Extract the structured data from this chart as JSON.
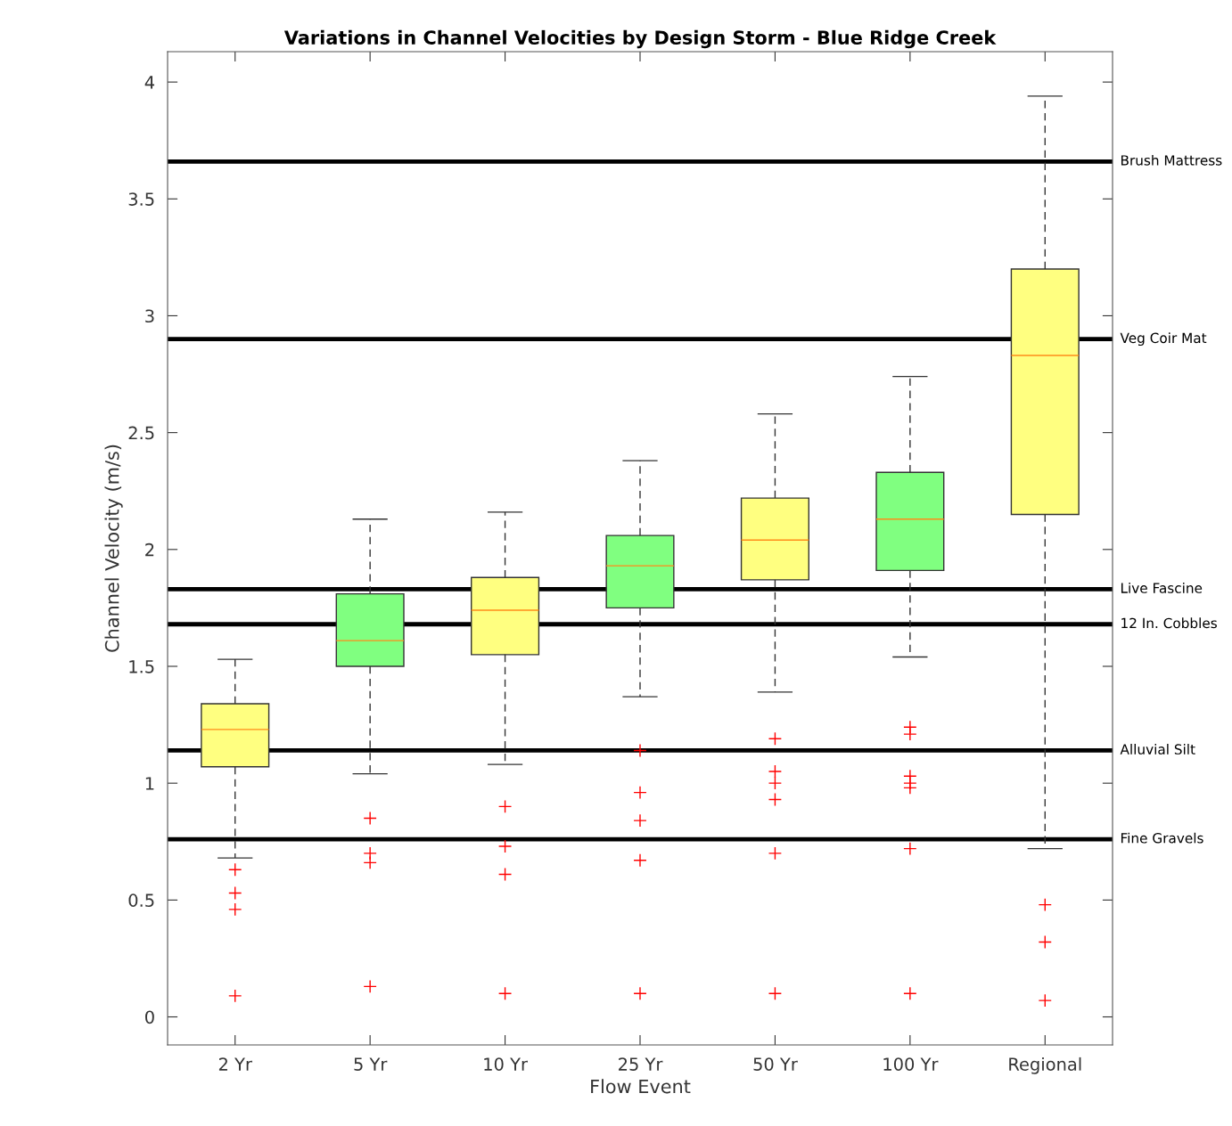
{
  "chart_data": {
    "type": "box",
    "title": "Variations in Channel Velocities by Design Storm - Blue Ridge Creek",
    "xlabel": "Flow Event",
    "ylabel": "Channel Velocity (m/s)",
    "categories": [
      "2 Yr",
      "5 Yr",
      "10 Yr",
      "25 Yr",
      "50 Yr",
      "100 Yr",
      "Regional"
    ],
    "colors": [
      "#ffff80",
      "#80ff80",
      "#ffff80",
      "#80ff80",
      "#ffff80",
      "#80ff80",
      "#ffff80"
    ],
    "boxes": [
      {
        "low": 0.68,
        "q1": 1.07,
        "median": 1.23,
        "q3": 1.34,
        "high": 1.53,
        "outliers": [
          0.63,
          0.53,
          0.46,
          0.09
        ]
      },
      {
        "low": 1.04,
        "q1": 1.5,
        "median": 1.61,
        "q3": 1.81,
        "high": 2.13,
        "outliers": [
          0.85,
          0.7,
          0.66,
          0.13
        ]
      },
      {
        "low": 1.08,
        "q1": 1.55,
        "median": 1.74,
        "q3": 1.88,
        "high": 2.16,
        "outliers": [
          0.9,
          0.73,
          0.61,
          0.1
        ]
      },
      {
        "low": 1.37,
        "q1": 1.75,
        "median": 1.93,
        "q3": 2.06,
        "high": 2.38,
        "outliers": [
          1.14,
          0.96,
          0.84,
          0.67,
          0.1
        ]
      },
      {
        "low": 1.39,
        "q1": 1.87,
        "median": 2.04,
        "q3": 2.22,
        "high": 2.58,
        "outliers": [
          1.19,
          1.05,
          1.0,
          0.93,
          0.7,
          0.1
        ]
      },
      {
        "low": 1.54,
        "q1": 1.91,
        "median": 2.13,
        "q3": 2.33,
        "high": 2.74,
        "outliers": [
          1.24,
          1.21,
          1.03,
          1.0,
          0.98,
          0.72,
          0.1
        ]
      },
      {
        "low": 0.72,
        "q1": 2.15,
        "median": 2.83,
        "q3": 3.2,
        "high": 3.94,
        "outliers": [
          0.48,
          0.32,
          0.07
        ]
      }
    ],
    "ylim": [
      -0.12,
      4.13
    ],
    "yticks": [
      0,
      0.5,
      1,
      1.5,
      2,
      2.5,
      3,
      3.5,
      4
    ],
    "marker": "cross",
    "grid": false,
    "ref_lines": [
      {
        "axis": "y",
        "value": 3.66,
        "label": "Brush Mattress",
        "color": "#000000"
      },
      {
        "axis": "y",
        "value": 2.9,
        "label": "Veg Coir Mat",
        "color": "#000000"
      },
      {
        "axis": "y",
        "value": 1.83,
        "label": "Live Fascine",
        "color": "#000000"
      },
      {
        "axis": "y",
        "value": 1.68,
        "label": "12 In. Cobbles",
        "color": "#000000"
      },
      {
        "axis": "y",
        "value": 1.14,
        "label": "Alluvial Silt",
        "color": "#000000"
      },
      {
        "axis": "y",
        "value": 0.76,
        "label": "Fine Gravels",
        "color": "#000000"
      }
    ]
  }
}
